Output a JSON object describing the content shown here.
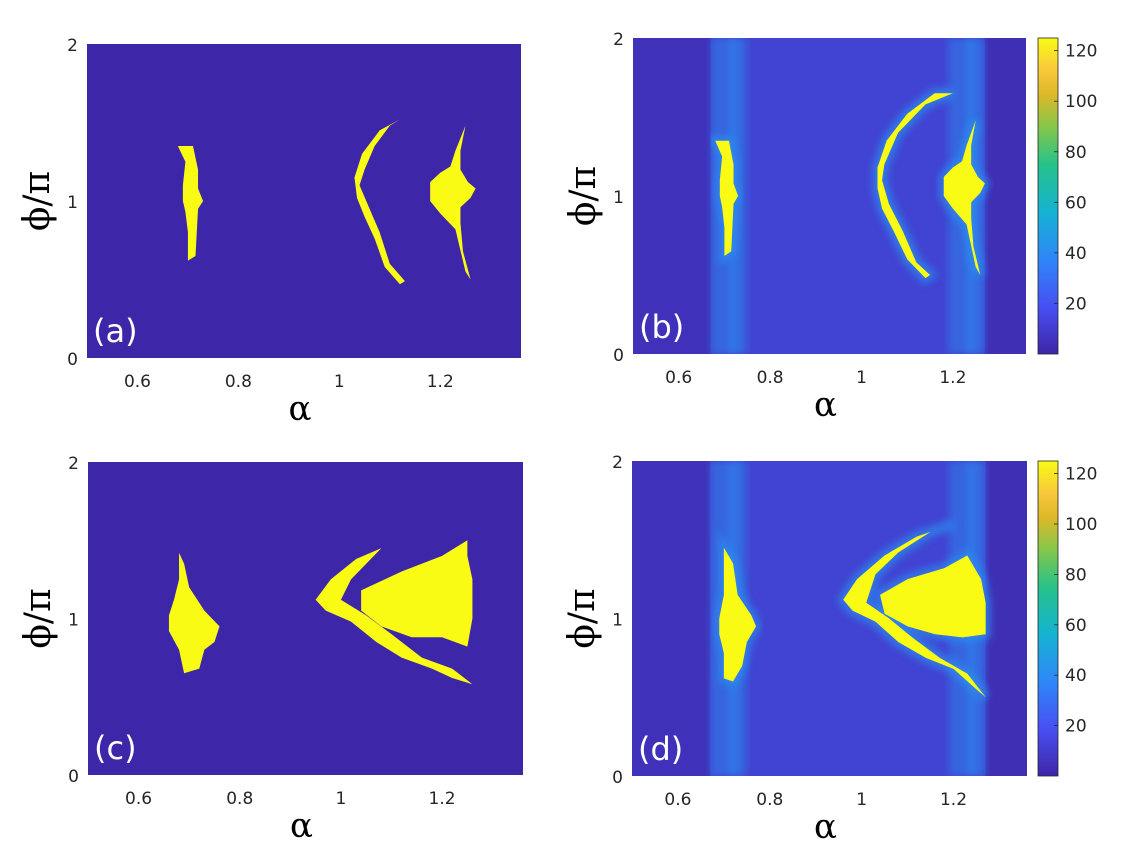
{
  "chart_data": [
    {
      "type": "heatmap",
      "panel_label": "(a)",
      "xlabel": "α",
      "ylabel": "ϕ/π",
      "xlim": [
        0.5,
        1.36
      ],
      "ylim": [
        0,
        2
      ],
      "xticks": [
        "0.6",
        "0.8",
        "1",
        "1.2"
      ],
      "yticks": [
        "0",
        "1",
        "2"
      ],
      "colorbar": false,
      "background_color": "#3e26a8",
      "region_color": "#f9fb15",
      "regions": [
        {
          "name": "left-island",
          "polygon": [
            [
              0.68,
              1.35
            ],
            [
              0.71,
              1.35
            ],
            [
              0.72,
              1.2
            ],
            [
              0.72,
              1.08
            ],
            [
              0.73,
              1.0
            ],
            [
              0.72,
              0.95
            ],
            [
              0.715,
              0.65
            ],
            [
              0.7,
              0.62
            ],
            [
              0.7,
              0.8
            ],
            [
              0.695,
              0.93
            ],
            [
              0.69,
              1.0
            ],
            [
              0.69,
              1.1
            ],
            [
              0.695,
              1.25
            ]
          ]
        },
        {
          "name": "middle-arc",
          "polygon": [
            [
              1.12,
              1.52
            ],
            [
              1.1,
              1.48
            ],
            [
              1.07,
              1.35
            ],
            [
              1.05,
              1.2
            ],
            [
              1.04,
              1.1
            ],
            [
              1.06,
              0.95
            ],
            [
              1.08,
              0.8
            ],
            [
              1.1,
              0.6
            ],
            [
              1.13,
              0.49
            ],
            [
              1.12,
              0.47
            ],
            [
              1.09,
              0.58
            ],
            [
              1.07,
              0.76
            ],
            [
              1.05,
              0.9
            ],
            [
              1.035,
              1.02
            ],
            [
              1.03,
              1.15
            ],
            [
              1.045,
              1.3
            ],
            [
              1.08,
              1.45
            ]
          ]
        },
        {
          "name": "right-crescent",
          "polygon": [
            [
              1.25,
              1.48
            ],
            [
              1.23,
              1.32
            ],
            [
              1.22,
              1.22
            ],
            [
              1.2,
              1.18
            ],
            [
              1.18,
              1.12
            ],
            [
              1.18,
              1.0
            ],
            [
              1.2,
              0.92
            ],
            [
              1.23,
              0.82
            ],
            [
              1.25,
              0.55
            ],
            [
              1.26,
              0.5
            ],
            [
              1.245,
              0.68
            ],
            [
              1.24,
              0.86
            ],
            [
              1.24,
              0.96
            ],
            [
              1.26,
              1.02
            ],
            [
              1.27,
              1.08
            ],
            [
              1.255,
              1.12
            ],
            [
              1.24,
              1.2
            ],
            [
              1.24,
              1.32
            ]
          ]
        }
      ]
    },
    {
      "type": "heatmap",
      "panel_label": "(b)",
      "xlabel": "α",
      "ylabel": "ϕ/π",
      "xlim": [
        0.5,
        1.36
      ],
      "ylim": [
        0,
        2
      ],
      "xticks": [
        "0.6",
        "0.8",
        "1",
        "1.2"
      ],
      "yticks": [
        "0",
        "1",
        "2"
      ],
      "colorbar": true,
      "colorbar_range": [
        0,
        125
      ],
      "colorbar_ticks": [
        "20",
        "40",
        "60",
        "80",
        "100",
        "120"
      ],
      "background_color": "#3e26a8",
      "region_color": "#f9fb15",
      "halo_color": "#2a8ff0",
      "regions": [
        {
          "name": "left-island",
          "polygon": [
            [
              0.68,
              1.35
            ],
            [
              0.71,
              1.35
            ],
            [
              0.72,
              1.2
            ],
            [
              0.72,
              1.08
            ],
            [
              0.73,
              1.0
            ],
            [
              0.72,
              0.95
            ],
            [
              0.715,
              0.65
            ],
            [
              0.7,
              0.62
            ],
            [
              0.7,
              0.8
            ],
            [
              0.695,
              0.93
            ],
            [
              0.69,
              1.0
            ],
            [
              0.69,
              1.1
            ],
            [
              0.695,
              1.25
            ]
          ]
        },
        {
          "name": "middle-arc",
          "polygon": [
            [
              1.2,
              1.65
            ],
            [
              1.14,
              1.58
            ],
            [
              1.08,
              1.4
            ],
            [
              1.05,
              1.2
            ],
            [
              1.045,
              1.1
            ],
            [
              1.06,
              0.95
            ],
            [
              1.09,
              0.78
            ],
            [
              1.12,
              0.58
            ],
            [
              1.15,
              0.5
            ],
            [
              1.14,
              0.48
            ],
            [
              1.1,
              0.6
            ],
            [
              1.07,
              0.78
            ],
            [
              1.045,
              0.92
            ],
            [
              1.035,
              1.05
            ],
            [
              1.035,
              1.18
            ],
            [
              1.055,
              1.35
            ],
            [
              1.1,
              1.52
            ],
            [
              1.16,
              1.65
            ]
          ]
        },
        {
          "name": "right-crescent",
          "polygon": [
            [
              1.25,
              1.48
            ],
            [
              1.23,
              1.32
            ],
            [
              1.22,
              1.22
            ],
            [
              1.2,
              1.18
            ],
            [
              1.18,
              1.12
            ],
            [
              1.18,
              1.0
            ],
            [
              1.2,
              0.92
            ],
            [
              1.23,
              0.82
            ],
            [
              1.25,
              0.55
            ],
            [
              1.26,
              0.5
            ],
            [
              1.245,
              0.68
            ],
            [
              1.24,
              0.86
            ],
            [
              1.24,
              0.96
            ],
            [
              1.26,
              1.02
            ],
            [
              1.27,
              1.08
            ],
            [
              1.255,
              1.12
            ],
            [
              1.24,
              1.2
            ],
            [
              1.24,
              1.32
            ]
          ]
        }
      ]
    },
    {
      "type": "heatmap",
      "panel_label": "(c)",
      "xlabel": "α",
      "ylabel": "ϕ/π",
      "xlim": [
        0.5,
        1.36
      ],
      "ylim": [
        0,
        2
      ],
      "xticks": [
        "0.6",
        "0.8",
        "1",
        "1.2"
      ],
      "yticks": [
        "0",
        "1",
        "2"
      ],
      "colorbar": false,
      "background_color": "#3e26a8",
      "region_color": "#f9fb15",
      "regions": [
        {
          "name": "left-island",
          "polygon": [
            [
              0.68,
              1.42
            ],
            [
              0.69,
              1.35
            ],
            [
              0.7,
              1.2
            ],
            [
              0.73,
              1.05
            ],
            [
              0.76,
              0.95
            ],
            [
              0.75,
              0.85
            ],
            [
              0.73,
              0.8
            ],
            [
              0.72,
              0.68
            ],
            [
              0.69,
              0.65
            ],
            [
              0.68,
              0.8
            ],
            [
              0.66,
              0.92
            ],
            [
              0.66,
              1.02
            ],
            [
              0.67,
              1.12
            ],
            [
              0.68,
              1.25
            ]
          ]
        },
        {
          "name": "wing",
          "polygon": [
            [
              1.08,
              1.45
            ],
            [
              1.03,
              1.38
            ],
            [
              0.98,
              1.25
            ],
            [
              0.95,
              1.12
            ],
            [
              0.97,
              1.05
            ],
            [
              1.02,
              0.98
            ],
            [
              1.07,
              0.85
            ],
            [
              1.12,
              0.75
            ],
            [
              1.18,
              0.68
            ],
            [
              1.22,
              0.62
            ],
            [
              1.26,
              0.58
            ],
            [
              1.22,
              0.68
            ],
            [
              1.16,
              0.75
            ],
            [
              1.1,
              0.9
            ],
            [
              1.05,
              1.02
            ],
            [
              1.0,
              1.12
            ],
            [
              1.02,
              1.25
            ],
            [
              1.05,
              1.35
            ]
          ]
        },
        {
          "name": "right-triangle",
          "polygon": [
            [
              1.25,
              1.5
            ],
            [
              1.2,
              1.4
            ],
            [
              1.12,
              1.3
            ],
            [
              1.04,
              1.18
            ],
            [
              1.04,
              1.05
            ],
            [
              1.08,
              0.95
            ],
            [
              1.14,
              0.88
            ],
            [
              1.2,
              0.88
            ],
            [
              1.25,
              0.82
            ],
            [
              1.26,
              1.0
            ],
            [
              1.26,
              1.25
            ],
            [
              1.25,
              1.4
            ]
          ]
        }
      ]
    },
    {
      "type": "heatmap",
      "panel_label": "(d)",
      "xlabel": "α",
      "ylabel": "ϕ/π",
      "xlim": [
        0.5,
        1.36
      ],
      "ylim": [
        0,
        2
      ],
      "xticks": [
        "0.6",
        "0.8",
        "1",
        "1.2"
      ],
      "yticks": [
        "0",
        "1",
        "2"
      ],
      "colorbar": true,
      "colorbar_range": [
        0,
        125
      ],
      "colorbar_ticks": [
        "20",
        "40",
        "60",
        "80",
        "100",
        "120"
      ],
      "background_color": "#3e26a8",
      "region_color": "#f9fb15",
      "halo_color": "#2a8ff0",
      "regions": [
        {
          "name": "left-island",
          "polygon": [
            [
              0.7,
              1.45
            ],
            [
              0.72,
              1.35
            ],
            [
              0.73,
              1.15
            ],
            [
              0.76,
              1.02
            ],
            [
              0.77,
              0.95
            ],
            [
              0.75,
              0.85
            ],
            [
              0.74,
              0.7
            ],
            [
              0.72,
              0.6
            ],
            [
              0.7,
              0.62
            ],
            [
              0.7,
              0.78
            ],
            [
              0.69,
              0.9
            ],
            [
              0.69,
              1.0
            ],
            [
              0.7,
              1.15
            ],
            [
              0.7,
              1.3
            ]
          ]
        },
        {
          "name": "wing",
          "polygon": [
            [
              1.2,
              1.6
            ],
            [
              1.12,
              1.52
            ],
            [
              1.05,
              1.4
            ],
            [
              0.99,
              1.25
            ],
            [
              0.96,
              1.12
            ],
            [
              0.98,
              1.05
            ],
            [
              1.03,
              0.98
            ],
            [
              1.08,
              0.85
            ],
            [
              1.14,
              0.75
            ],
            [
              1.2,
              0.68
            ],
            [
              1.25,
              0.55
            ],
            [
              1.27,
              0.5
            ],
            [
              1.23,
              0.65
            ],
            [
              1.17,
              0.75
            ],
            [
              1.11,
              0.88
            ],
            [
              1.06,
              1.0
            ],
            [
              1.01,
              1.1
            ],
            [
              1.03,
              1.28
            ],
            [
              1.08,
              1.42
            ],
            [
              1.15,
              1.55
            ]
          ]
        },
        {
          "name": "right-triangle",
          "polygon": [
            [
              1.23,
              1.4
            ],
            [
              1.18,
              1.32
            ],
            [
              1.1,
              1.25
            ],
            [
              1.04,
              1.15
            ],
            [
              1.05,
              1.03
            ],
            [
              1.1,
              0.95
            ],
            [
              1.16,
              0.9
            ],
            [
              1.22,
              0.88
            ],
            [
              1.27,
              0.9
            ],
            [
              1.27,
              1.1
            ],
            [
              1.26,
              1.25
            ]
          ]
        }
      ]
    }
  ]
}
